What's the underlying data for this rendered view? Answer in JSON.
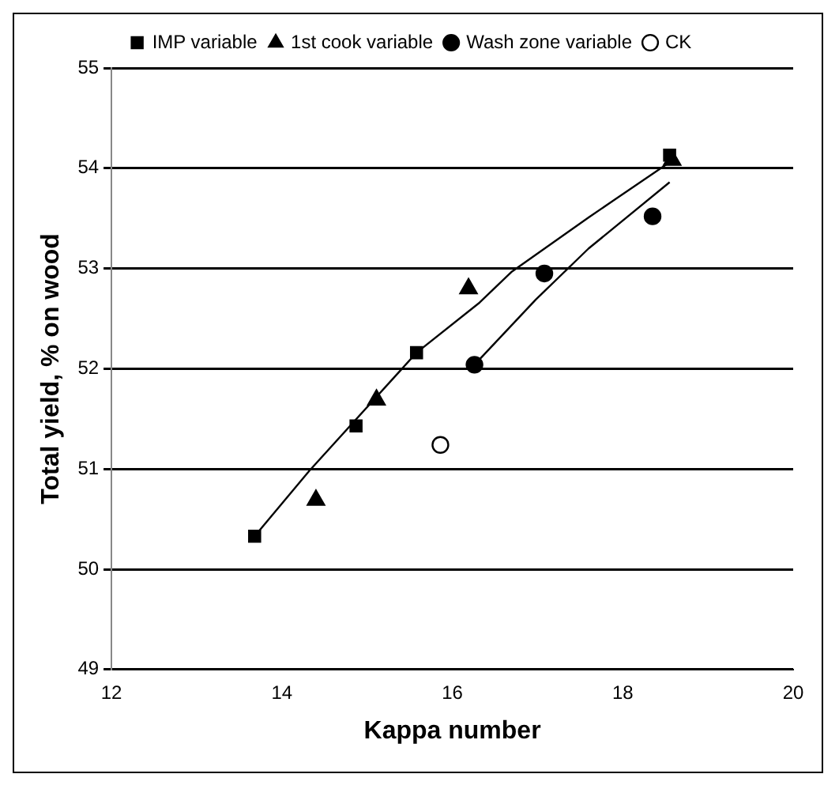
{
  "chart_data": {
    "type": "scatter",
    "xlabel": "Kappa number",
    "ylabel": "Total yield, % on wood",
    "xlim": [
      12,
      20
    ],
    "xticks": [
      12,
      14,
      16,
      18,
      20
    ],
    "ylim": [
      49,
      55
    ],
    "yticks": [
      49,
      50,
      51,
      52,
      53,
      54,
      55
    ],
    "grid": "y",
    "legend": "top",
    "series": [
      {
        "name": "IMP variable",
        "color": "#000000",
        "marker": "square",
        "x": [
          13.68,
          14.87,
          15.58,
          18.55
        ],
        "values": [
          50.33,
          51.43,
          52.16,
          54.13
        ]
      },
      {
        "name": "1st cook variable",
        "color": "#000000",
        "marker": "triangle",
        "x": [
          14.4,
          15.11,
          16.19,
          18.58
        ],
        "values": [
          50.69,
          51.69,
          52.8,
          54.08
        ]
      },
      {
        "name": "Wash zone variable",
        "color": "#000000",
        "marker": "circle",
        "x": [
          16.26,
          17.08,
          18.35
        ],
        "values": [
          52.04,
          52.95,
          53.52
        ]
      },
      {
        "name": "CK",
        "color": "#ffffff",
        "marker": "circle",
        "x": [
          15.86
        ],
        "values": [
          51.24
        ]
      },
      {
        "type": "line",
        "color": "#000000",
        "marker": "none",
        "x": [
          13.68,
          14.32,
          15.58,
          16.32,
          16.7,
          17.6,
          18.55
        ],
        "values": [
          50.33,
          50.98,
          52.16,
          52.66,
          52.97,
          53.51,
          54.06
        ]
      },
      {
        "type": "line",
        "color": "#000000",
        "marker": "none",
        "x": [
          16.26,
          16.98,
          17.6,
          18.55
        ],
        "values": [
          52.04,
          52.69,
          53.2,
          53.86
        ]
      }
    ]
  }
}
